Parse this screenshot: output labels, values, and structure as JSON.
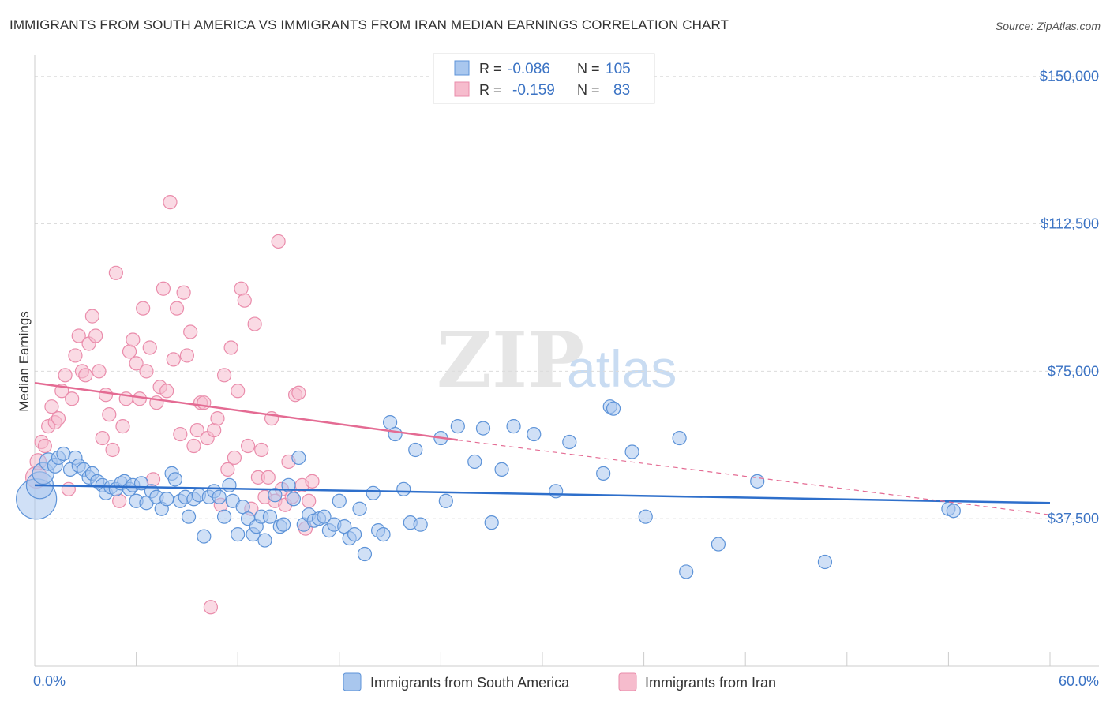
{
  "header": {
    "title": "IMMIGRANTS FROM SOUTH AMERICA VS IMMIGRANTS FROM IRAN MEDIAN EARNINGS CORRELATION CHART",
    "source": "Source: ZipAtlas.com"
  },
  "watermark": {
    "zip": "ZIP",
    "atlas": "atlas"
  },
  "colors": {
    "blue_fill": "#a9c7ee",
    "blue_stroke": "#5d93d8",
    "blue_line": "#2e6fcb",
    "pink_fill": "#f6bccd",
    "pink_stroke": "#ea8cab",
    "pink_line": "#e46b93",
    "axis_label": "#3b73c4"
  },
  "legend": {
    "rows": [
      {
        "r_label": "R =",
        "r_value": "-0.086",
        "n_label": "N =",
        "n_value": "105"
      },
      {
        "r_label": "R =",
        "r_value": "-0.159",
        "n_label": "N =",
        "n_value": "83"
      }
    ]
  },
  "chart_data": {
    "type": "scatter",
    "title": "IMMIGRANTS FROM SOUTH AMERICA VS IMMIGRANTS FROM IRAN MEDIAN EARNINGS CORRELATION CHART",
    "xlabel": "",
    "ylabel": "Median Earnings",
    "xlim": [
      0,
      60
    ],
    "ylim": [
      0,
      155000
    ],
    "x_tick_labels": [
      "0.0%",
      "60.0%"
    ],
    "y_ticks": [
      37500,
      75000,
      112500,
      150000
    ],
    "y_tick_labels": [
      "$37,500",
      "$75,000",
      "$112,500",
      "$150,000"
    ],
    "grid": true,
    "legend_position": "top-center",
    "series": [
      {
        "name": "Immigrants from South America",
        "color": "#a9c7ee",
        "R": -0.086,
        "N": 105,
        "trend": {
          "x": [
            0,
            60
          ],
          "y": [
            46000,
            41500
          ]
        },
        "points": [
          [
            0.1,
            42500,
            3
          ],
          [
            0.3,
            46000,
            2
          ],
          [
            0.5,
            49000,
            1.6
          ],
          [
            0.8,
            52000,
            1.3
          ],
          [
            1.2,
            51000,
            1.1
          ],
          [
            1.4,
            53000,
            1
          ],
          [
            1.7,
            54000,
            1
          ],
          [
            2.1,
            50000,
            1
          ],
          [
            2.4,
            53000,
            1
          ],
          [
            2.6,
            51000,
            1
          ],
          [
            2.9,
            50000,
            1
          ],
          [
            3.2,
            48000,
            1
          ],
          [
            3.4,
            49000,
            1
          ],
          [
            3.7,
            47000,
            1
          ],
          [
            4.0,
            46000,
            1
          ],
          [
            4.2,
            44000,
            1
          ],
          [
            4.5,
            45500,
            1
          ],
          [
            4.8,
            45000,
            1
          ],
          [
            5.1,
            46500,
            1
          ],
          [
            5.3,
            47000,
            1
          ],
          [
            5.6,
            45000,
            1
          ],
          [
            5.8,
            46000,
            1
          ],
          [
            6.0,
            42000,
            1
          ],
          [
            6.3,
            46500,
            1
          ],
          [
            6.6,
            41500,
            1
          ],
          [
            6.9,
            44500,
            1
          ],
          [
            7.2,
            43000,
            1
          ],
          [
            7.5,
            40000,
            1
          ],
          [
            7.8,
            42500,
            1
          ],
          [
            8.1,
            49000,
            1
          ],
          [
            8.3,
            47500,
            1
          ],
          [
            8.6,
            42000,
            1
          ],
          [
            8.9,
            43000,
            1
          ],
          [
            9.1,
            38000,
            1
          ],
          [
            9.4,
            42500,
            1
          ],
          [
            9.7,
            43500,
            1
          ],
          [
            10.0,
            33000,
            1
          ],
          [
            10.3,
            43000,
            1
          ],
          [
            10.6,
            44500,
            1
          ],
          [
            10.9,
            43000,
            1
          ],
          [
            11.2,
            38000,
            1
          ],
          [
            11.5,
            46000,
            1
          ],
          [
            11.7,
            42000,
            1
          ],
          [
            12.0,
            33500,
            1
          ],
          [
            12.3,
            40500,
            1
          ],
          [
            12.6,
            37500,
            1
          ],
          [
            12.9,
            33500,
            1
          ],
          [
            13.1,
            35500,
            1
          ],
          [
            13.4,
            38000,
            1
          ],
          [
            13.6,
            32000,
            1
          ],
          [
            13.9,
            38000,
            1
          ],
          [
            14.2,
            43500,
            1
          ],
          [
            14.5,
            35500,
            1
          ],
          [
            14.7,
            36000,
            1
          ],
          [
            15.0,
            46000,
            1
          ],
          [
            15.3,
            42500,
            1
          ],
          [
            15.6,
            53000,
            1
          ],
          [
            15.9,
            36000,
            1
          ],
          [
            16.2,
            38500,
            1
          ],
          [
            16.5,
            37000,
            1
          ],
          [
            16.8,
            37500,
            1
          ],
          [
            17.1,
            38000,
            1
          ],
          [
            17.4,
            34500,
            1
          ],
          [
            17.7,
            36000,
            1
          ],
          [
            18.0,
            42000,
            1
          ],
          [
            18.3,
            35500,
            1
          ],
          [
            18.6,
            32500,
            1
          ],
          [
            18.9,
            33500,
            1
          ],
          [
            19.2,
            40000,
            1
          ],
          [
            19.5,
            28500,
            1
          ],
          [
            20.0,
            44000,
            1
          ],
          [
            20.3,
            34500,
            1
          ],
          [
            20.6,
            33500,
            1
          ],
          [
            21.0,
            62000,
            1
          ],
          [
            21.3,
            59000,
            1
          ],
          [
            21.8,
            45000,
            1
          ],
          [
            22.2,
            36500,
            1
          ],
          [
            22.5,
            55000,
            1
          ],
          [
            22.8,
            36000,
            1
          ],
          [
            24.0,
            58000,
            1
          ],
          [
            24.3,
            42000,
            1
          ],
          [
            25.0,
            61000,
            1
          ],
          [
            26.0,
            52000,
            1
          ],
          [
            26.5,
            60500,
            1
          ],
          [
            27.0,
            36500,
            1
          ],
          [
            27.6,
            50000,
            1
          ],
          [
            28.3,
            61000,
            1
          ],
          [
            29.5,
            59000,
            1
          ],
          [
            30.8,
            44500,
            1
          ],
          [
            31.6,
            57000,
            1
          ],
          [
            33.6,
            49000,
            1
          ],
          [
            34.0,
            66000,
            1
          ],
          [
            34.2,
            65500,
            1
          ],
          [
            35.3,
            54500,
            1
          ],
          [
            36.1,
            38000,
            1
          ],
          [
            38.1,
            58000,
            1
          ],
          [
            38.5,
            24000,
            1
          ],
          [
            40.4,
            31000,
            1
          ],
          [
            42.7,
            47000,
            1
          ],
          [
            46.7,
            26500,
            1
          ],
          [
            54.0,
            40000,
            1
          ],
          [
            54.3,
            39500,
            1
          ]
        ]
      },
      {
        "name": "Immigrants from Iran",
        "color": "#f6bccd",
        "R": -0.159,
        "N": 83,
        "trend": {
          "x": [
            0,
            25
          ],
          "y": [
            72000,
            57500
          ],
          "dashed_extension": {
            "x": [
              25,
              60
            ],
            "y": [
              57500,
              38500
            ]
          }
        },
        "points": [
          [
            0.1,
            48000,
            1.6
          ],
          [
            0.2,
            52000,
            1.2
          ],
          [
            0.4,
            57000,
            1
          ],
          [
            0.6,
            56000,
            1
          ],
          [
            0.8,
            61000,
            1
          ],
          [
            1.0,
            66000,
            1
          ],
          [
            1.2,
            62000,
            1
          ],
          [
            1.4,
            63000,
            1
          ],
          [
            1.6,
            70000,
            1
          ],
          [
            1.8,
            74000,
            1
          ],
          [
            2.0,
            45000,
            1
          ],
          [
            2.2,
            68000,
            1
          ],
          [
            2.4,
            79000,
            1
          ],
          [
            2.6,
            84000,
            1
          ],
          [
            2.8,
            75000,
            1
          ],
          [
            3.0,
            74000,
            1
          ],
          [
            3.2,
            82000,
            1
          ],
          [
            3.4,
            89000,
            1
          ],
          [
            3.6,
            84000,
            1
          ],
          [
            3.8,
            75000,
            1
          ],
          [
            4.0,
            58000,
            1
          ],
          [
            4.2,
            69000,
            1
          ],
          [
            4.4,
            64000,
            1
          ],
          [
            4.6,
            55000,
            1
          ],
          [
            4.8,
            100000,
            1
          ],
          [
            5.0,
            42000,
            1
          ],
          [
            5.2,
            61000,
            1
          ],
          [
            5.4,
            68000,
            1
          ],
          [
            5.6,
            80000,
            1
          ],
          [
            5.8,
            83000,
            1
          ],
          [
            6.0,
            77000,
            1
          ],
          [
            6.2,
            68000,
            1
          ],
          [
            6.4,
            91000,
            1
          ],
          [
            6.6,
            75000,
            1
          ],
          [
            6.8,
            81000,
            1
          ],
          [
            7.0,
            47500,
            1
          ],
          [
            7.2,
            67000,
            1
          ],
          [
            7.4,
            71000,
            1
          ],
          [
            7.6,
            96000,
            1
          ],
          [
            7.8,
            70000,
            1
          ],
          [
            8.0,
            118000,
            1
          ],
          [
            8.2,
            78000,
            1
          ],
          [
            8.4,
            91000,
            1
          ],
          [
            8.6,
            59000,
            1
          ],
          [
            8.8,
            95000,
            1
          ],
          [
            9.0,
            79000,
            1
          ],
          [
            9.2,
            85000,
            1
          ],
          [
            9.4,
            56000,
            1
          ],
          [
            9.6,
            60000,
            1
          ],
          [
            9.8,
            67000,
            1
          ],
          [
            10.0,
            67000,
            1
          ],
          [
            10.2,
            58000,
            1
          ],
          [
            10.4,
            15000,
            1
          ],
          [
            10.6,
            60000,
            1
          ],
          [
            10.8,
            63000,
            1
          ],
          [
            11.0,
            41000,
            1
          ],
          [
            11.2,
            74000,
            1
          ],
          [
            11.4,
            50000,
            1
          ],
          [
            11.6,
            81000,
            1
          ],
          [
            11.8,
            53000,
            1
          ],
          [
            12.0,
            70000,
            1
          ],
          [
            12.2,
            96000,
            1
          ],
          [
            12.4,
            93000,
            1
          ],
          [
            12.6,
            56000,
            1
          ],
          [
            12.8,
            40000,
            1
          ],
          [
            13.0,
            87000,
            1
          ],
          [
            13.2,
            48000,
            1
          ],
          [
            13.4,
            55000,
            1
          ],
          [
            13.6,
            43000,
            1
          ],
          [
            13.8,
            48000,
            1
          ],
          [
            14.0,
            63000,
            1
          ],
          [
            14.2,
            42000,
            1
          ],
          [
            14.4,
            108000,
            1
          ],
          [
            14.6,
            45000,
            1
          ],
          [
            14.8,
            41000,
            1
          ],
          [
            15.0,
            52000,
            1
          ],
          [
            15.2,
            43000,
            1
          ],
          [
            15.4,
            69000,
            1
          ],
          [
            15.6,
            69500,
            1
          ],
          [
            15.8,
            46000,
            1
          ],
          [
            16.0,
            35000,
            1
          ],
          [
            16.2,
            42000,
            1
          ],
          [
            16.4,
            47000,
            1
          ]
        ]
      }
    ]
  },
  "bottom_legend": {
    "items": [
      {
        "label": "Immigrants from South America"
      },
      {
        "label": "Immigrants from Iran"
      }
    ]
  }
}
